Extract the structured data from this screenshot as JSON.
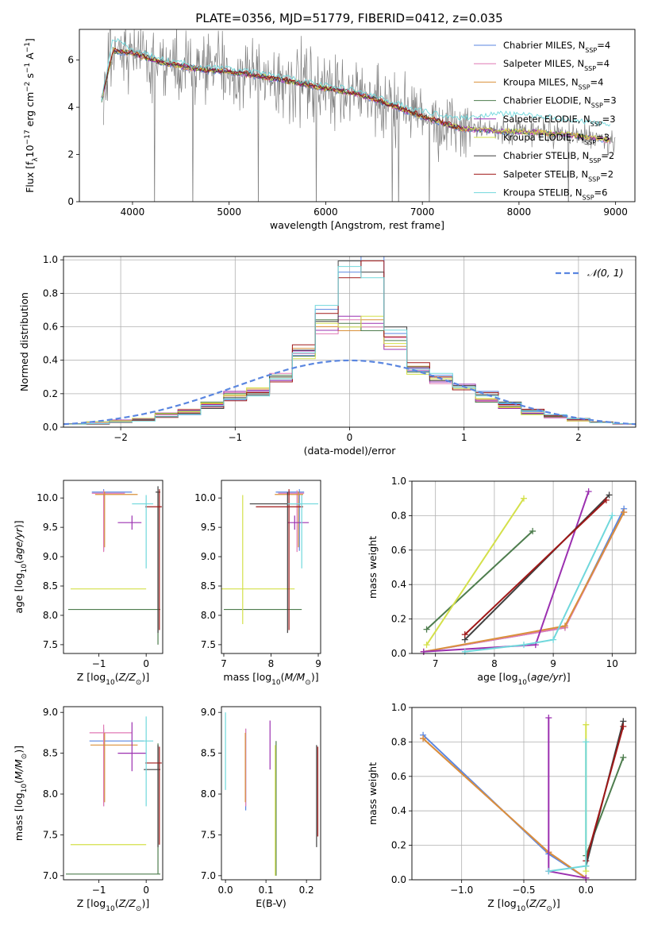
{
  "figure": {
    "title": "PLATE=0356, MJD=51779, FIBERID=0412, z=0.035"
  },
  "models": [
    {
      "label": "Chabrier MILES, N$_{SSP}$=4",
      "lab": "Chabrier MILES, N",
      "sub": "SSP",
      "n": "=4",
      "color": "#5a86e0"
    },
    {
      "label": "Salpeter MILES, N$_{SSP}$=4",
      "lab": "Salpeter MILES, N",
      "sub": "SSP",
      "n": "=4",
      "color": "#e07ab5"
    },
    {
      "label": "Kroupa MILES, N$_{SSP}$=4",
      "lab": "Kroupa MILES, N",
      "sub": "SSP",
      "n": "=4",
      "color": "#d9913a"
    },
    {
      "label": "Chabrier ELODIE, N$_{SSP}$=3",
      "lab": "Chabrier ELODIE, N",
      "sub": "SSP",
      "n": "=3",
      "color": "#4e7d4e"
    },
    {
      "label": "Salpeter ELODIE, N$_{SSP}$=3",
      "lab": "Salpeter ELODIE, N",
      "sub": "SSP",
      "n": "=3",
      "color": "#9b30b0"
    },
    {
      "label": "Kroupa ELODIE, N$_{SSP}$=3",
      "lab": "Kroupa ELODIE, N",
      "sub": "SSP",
      "n": "=3",
      "color": "#d4e04a"
    },
    {
      "label": "Chabrier STELIB, N$_{SSP}$=2",
      "lab": "Chabrier STELIB, N",
      "sub": "SSP",
      "n": "=2",
      "color": "#3f3f3f"
    },
    {
      "label": "Salpeter STELIB, N$_{SSP}$=2",
      "lab": "Salpeter STELIB, N",
      "sub": "SSP",
      "n": "=2",
      "color": "#a01818"
    },
    {
      "label": "Kroupa STELIB, N$_{SSP}$=6",
      "lab": "Kroupa STELIB, N",
      "sub": "SSP",
      "n": "=6",
      "color": "#70d8dc"
    }
  ],
  "chart_data": [
    {
      "id": "spectrum",
      "type": "line",
      "xlabel": "wavelength [Angstrom, rest frame]",
      "ylabel": "Flux [f_λ 10^-17 erg cm^-2 s^-1 A^-1]",
      "xlim": [
        3450,
        9200
      ],
      "ylim": [
        0,
        7.3
      ],
      "xticks": [
        4000,
        5000,
        6000,
        7000,
        8000,
        9000
      ],
      "yticks": [
        0,
        2,
        4,
        6
      ],
      "legend": "top-right",
      "data_color": "#808080",
      "data_x_range": [
        3700,
        9200
      ],
      "model_anchor_x": [
        3680,
        3800,
        4000,
        4300,
        4700,
        5000,
        5500,
        6000,
        6300,
        6600,
        7000,
        7400,
        7800,
        8200,
        8600,
        8950
      ],
      "model_anchor_y": [
        4.3,
        6.4,
        6.3,
        5.9,
        5.6,
        5.5,
        5.2,
        4.8,
        4.6,
        4.2,
        3.6,
        3.1,
        3.0,
        2.95,
        2.8,
        2.6
      ],
      "stelib_anchor_y": [
        4.3,
        6.9,
        6.4,
        6.0,
        5.7,
        5.6,
        5.3,
        4.9,
        4.7,
        4.3,
        3.8,
        3.5,
        3.7,
        3.6,
        3.4,
        3.2
      ]
    },
    {
      "id": "residuals",
      "type": "histogram",
      "xlabel": "(data-model)/error",
      "ylabel": "Normed distribution",
      "xlim": [
        -2.5,
        2.5
      ],
      "ylim": [
        0,
        1.02
      ],
      "xticks": [
        -2,
        -1,
        0,
        1,
        2
      ],
      "yticks": [
        0.0,
        0.2,
        0.4,
        0.6,
        0.8,
        1.0
      ],
      "legend": "top-right",
      "gauss_label": "𝒩(0, 1)",
      "gauss_color": "#5a86e0",
      "bins": [
        -2.5,
        -2.3,
        -2.1,
        -1.9,
        -1.7,
        -1.5,
        -1.3,
        -1.1,
        -0.9,
        -0.7,
        -0.5,
        -0.3,
        -0.1,
        0.1,
        0.3,
        0.5,
        0.7,
        0.9,
        1.1,
        1.3,
        1.5,
        1.7,
        1.9,
        2.1,
        2.3,
        2.5
      ],
      "hist_low": [
        0.02,
        0.03,
        0.04,
        0.05,
        0.08,
        0.1,
        0.14,
        0.2,
        0.22,
        0.3,
        0.44,
        0.6,
        0.62,
        0.62,
        0.5,
        0.34,
        0.28,
        0.24,
        0.16,
        0.12,
        0.08,
        0.06,
        0.04,
        0.03,
        0.02
      ],
      "hist_high": [
        0.02,
        0.02,
        0.03,
        0.04,
        0.06,
        0.08,
        0.12,
        0.17,
        0.2,
        0.28,
        0.46,
        0.68,
        0.96,
        0.96,
        0.56,
        0.36,
        0.3,
        0.24,
        0.2,
        0.14,
        0.1,
        0.07,
        0.05,
        0.03,
        0.02
      ]
    },
    {
      "id": "age-vs-Z",
      "type": "errorbar",
      "xlabel": "Z [log10(Z/Z⊙)]",
      "ylabel": "age  [log10(age/yr)]",
      "xlim": [
        -1.75,
        0.35
      ],
      "ylim": [
        7.35,
        10.3
      ],
      "xticks": [
        -1,
        0
      ],
      "yticks": [
        7.5,
        8.0,
        8.5,
        9.0,
        9.5,
        10.0
      ],
      "points": [
        {
          "x": -0.9,
          "y": 10.1,
          "xerr": [
            0.25,
            0.6
          ],
          "yerr": [
            1.0,
            0.05
          ],
          "model": 0
        },
        {
          "x": -0.9,
          "y": 10.08,
          "xerr": [
            0.25,
            0.45
          ],
          "yerr": [
            1.0,
            0.05
          ],
          "model": 1
        },
        {
          "x": -0.88,
          "y": 10.06,
          "xerr": [
            0.2,
            0.7
          ],
          "yerr": [
            0.9,
            0.05
          ],
          "model": 2
        },
        {
          "x": 0.25,
          "y": 8.1,
          "xerr": [
            1.9,
            0.05
          ],
          "yerr": [
            0.6,
            2.0
          ],
          "model": 3
        },
        {
          "x": -0.3,
          "y": 9.58,
          "xerr": [
            0.3,
            0.2
          ],
          "yerr": [
            0.12,
            0.12
          ],
          "model": 4
        },
        {
          "x": -1.6,
          "y": 8.45,
          "xerr": [
            0.0,
            1.6
          ],
          "yerr": [
            0.0,
            0.0
          ],
          "model": 5
        },
        {
          "x": 0.25,
          "y": 10.1,
          "xerr": [
            0.05,
            0.05
          ],
          "yerr": [
            2.4,
            0.1
          ],
          "model": 6
        },
        {
          "x": 0.28,
          "y": 9.85,
          "xerr": [
            0.3,
            0.05
          ],
          "yerr": [
            2.1,
            0.3
          ],
          "model": 7
        },
        {
          "x": 0.0,
          "y": 9.9,
          "xerr": [
            0.3,
            0.15
          ],
          "yerr": [
            1.1,
            0.15
          ],
          "model": 8
        }
      ]
    },
    {
      "id": "age-vs-mass",
      "type": "errorbar",
      "xlabel": "mass [log10(M/M⊙)]",
      "ylabel": "",
      "xlim": [
        6.95,
        9.05
      ],
      "ylim": [
        7.35,
        10.3
      ],
      "xticks": [
        7,
        8,
        9
      ],
      "yticks": [
        7.5,
        8.0,
        8.5,
        9.0,
        9.5,
        10.0
      ],
      "points": [
        {
          "x": 8.6,
          "y": 10.1,
          "xerr": [
            0.5,
            0.1
          ],
          "yerr": [
            1.0,
            0.05
          ],
          "model": 0
        },
        {
          "x": 8.55,
          "y": 10.08,
          "xerr": [
            0.4,
            0.15
          ],
          "yerr": [
            1.0,
            0.05
          ],
          "model": 1
        },
        {
          "x": 8.58,
          "y": 10.06,
          "xerr": [
            0.5,
            0.1
          ],
          "yerr": [
            0.9,
            0.05
          ],
          "model": 2
        },
        {
          "x": 7.0,
          "y": 8.1,
          "xerr": [
            0.0,
            1.65
          ],
          "yerr": [
            0.0,
            0.0
          ],
          "model": 3
        },
        {
          "x": 8.5,
          "y": 9.58,
          "xerr": [
            0.15,
            0.3
          ],
          "yerr": [
            0.12,
            0.12
          ],
          "model": 4
        },
        {
          "x": 7.4,
          "y": 8.45,
          "xerr": [
            0.45,
            1.1
          ],
          "yerr": [
            0.6,
            1.6
          ],
          "model": 5
        },
        {
          "x": 8.35,
          "y": 9.9,
          "xerr": [
            0.8,
            0.3
          ],
          "yerr": [
            2.2,
            0.2
          ],
          "model": 6
        },
        {
          "x": 8.38,
          "y": 9.85,
          "xerr": [
            0.7,
            0.3
          ],
          "yerr": [
            2.1,
            0.3
          ],
          "model": 7
        },
        {
          "x": 8.65,
          "y": 9.9,
          "xerr": [
            0.3,
            0.35
          ],
          "yerr": [
            1.1,
            0.15
          ],
          "model": 8
        }
      ]
    },
    {
      "id": "weight-vs-age",
      "type": "line",
      "xlabel": "age  [log10(age/yr)]",
      "ylabel": "mass weight",
      "xlim": [
        6.6,
        10.4
      ],
      "ylim": [
        0,
        1.0
      ],
      "xticks": [
        7,
        8,
        9,
        10
      ],
      "yticks": [
        0.0,
        0.2,
        0.4,
        0.6,
        0.8,
        1.0
      ],
      "series": [
        {
          "model": 0,
          "x": [
            6.8,
            9.2,
            10.2
          ],
          "y": [
            0.01,
            0.15,
            0.84
          ]
        },
        {
          "model": 1,
          "x": [
            6.8,
            9.2,
            10.2
          ],
          "y": [
            0.01,
            0.15,
            0.82
          ]
        },
        {
          "model": 2,
          "x": [
            6.8,
            9.2,
            10.2
          ],
          "y": [
            0.01,
            0.16,
            0.82
          ]
        },
        {
          "model": 3,
          "x": [
            6.85,
            8.65
          ],
          "y": [
            0.14,
            0.71
          ]
        },
        {
          "model": 4,
          "x": [
            6.8,
            8.7,
            9.6
          ],
          "y": [
            0.01,
            0.05,
            0.94
          ]
        },
        {
          "model": 5,
          "x": [
            6.85,
            8.5
          ],
          "y": [
            0.05,
            0.9
          ]
        },
        {
          "model": 6,
          "x": [
            7.5,
            9.95
          ],
          "y": [
            0.08,
            0.92
          ]
        },
        {
          "model": 7,
          "x": [
            7.5,
            9.9
          ],
          "y": [
            0.11,
            0.89
          ]
        },
        {
          "model": 8,
          "x": [
            7.5,
            8.5,
            9.0,
            10.0
          ],
          "y": [
            0.01,
            0.05,
            0.08,
            0.8
          ]
        }
      ]
    },
    {
      "id": "mass-vs-Z",
      "type": "errorbar",
      "xlabel": "Z [log10(Z/Z⊙)]",
      "ylabel": "mass [log10(M/M⊙)]",
      "xlim": [
        -1.75,
        0.35
      ],
      "ylim": [
        6.95,
        9.07
      ],
      "xticks": [
        -1,
        0
      ],
      "yticks": [
        7.0,
        7.5,
        8.0,
        8.5,
        9.0
      ],
      "points": [
        {
          "x": -0.9,
          "y": 8.65,
          "xerr": [
            0.3,
            0.85
          ],
          "yerr": [
            0.8,
            0.15
          ],
          "model": 0
        },
        {
          "x": -0.9,
          "y": 8.75,
          "xerr": [
            0.3,
            0.6
          ],
          "yerr": [
            0.9,
            0.1
          ],
          "model": 1
        },
        {
          "x": -0.88,
          "y": 8.6,
          "xerr": [
            0.3,
            0.7
          ],
          "yerr": [
            0.7,
            0.15
          ],
          "model": 2
        },
        {
          "x": 0.25,
          "y": 7.02,
          "xerr": [
            1.95,
            0.05
          ],
          "yerr": [
            0.0,
            1.6
          ],
          "model": 3
        },
        {
          "x": -0.3,
          "y": 8.5,
          "xerr": [
            0.3,
            0.3
          ],
          "yerr": [
            0.22,
            0.38
          ],
          "model": 4
        },
        {
          "x": -1.6,
          "y": 7.38,
          "xerr": [
            0.0,
            1.6
          ],
          "yerr": [
            0.0,
            0.0
          ],
          "model": 5
        },
        {
          "x": 0.25,
          "y": 8.3,
          "xerr": [
            0.3,
            0.05
          ],
          "yerr": [
            0.95,
            0.3
          ],
          "model": 6
        },
        {
          "x": 0.28,
          "y": 8.38,
          "xerr": [
            0.3,
            0.05
          ],
          "yerr": [
            1.0,
            0.2
          ],
          "model": 7
        },
        {
          "x": 0.0,
          "y": 8.65,
          "xerr": [
            0.3,
            0.15
          ],
          "yerr": [
            0.8,
            0.3
          ],
          "model": 8
        }
      ]
    },
    {
      "id": "mass-vs-EBV",
      "type": "errorbar",
      "xlabel": "E(B-V)",
      "ylabel": "",
      "xlim": [
        -0.01,
        0.235
      ],
      "ylim": [
        6.95,
        9.07
      ],
      "xticks": [
        0.0,
        0.1,
        0.2
      ],
      "yticks": [
        7.0,
        7.5,
        8.0,
        8.5,
        9.0
      ],
      "points": [
        {
          "x": 0.05,
          "y": 8.65,
          "xerr": [
            0.0,
            0.0
          ],
          "yerr": [
            0.85,
            0.15
          ],
          "model": 0
        },
        {
          "x": 0.05,
          "y": 8.75,
          "xerr": [
            0.0,
            0.0
          ],
          "yerr": [
            0.9,
            0.05
          ],
          "model": 1
        },
        {
          "x": 0.049,
          "y": 8.6,
          "xerr": [
            0.0,
            0.0
          ],
          "yerr": [
            0.7,
            0.15
          ],
          "model": 2
        },
        {
          "x": 0.125,
          "y": 8.3,
          "xerr": [
            0.0,
            0.0
          ],
          "yerr": [
            1.3,
            0.35
          ],
          "model": 3
        },
        {
          "x": 0.11,
          "y": 8.5,
          "xerr": [
            0.0,
            0.0
          ],
          "yerr": [
            0.2,
            0.4
          ],
          "model": 4
        },
        {
          "x": 0.123,
          "y": 8.3,
          "xerr": [
            0.0,
            0.0
          ],
          "yerr": [
            1.3,
            0.3
          ],
          "model": 5
        },
        {
          "x": 0.225,
          "y": 8.3,
          "xerr": [
            0.0,
            0.0
          ],
          "yerr": [
            0.95,
            0.3
          ],
          "model": 6
        },
        {
          "x": 0.228,
          "y": 8.38,
          "xerr": [
            0.0,
            0.0
          ],
          "yerr": [
            0.9,
            0.2
          ],
          "model": 7
        },
        {
          "x": 0.0,
          "y": 8.65,
          "xerr": [
            0.0,
            0.0
          ],
          "yerr": [
            0.6,
            0.35
          ],
          "model": 8
        }
      ]
    },
    {
      "id": "weight-vs-Z",
      "type": "line",
      "xlabel": "Z [log10(Z/Z⊙)]",
      "ylabel": "mass weight",
      "xlim": [
        -1.4,
        0.4
      ],
      "ylim": [
        0,
        1.0
      ],
      "xticks": [
        -1.0,
        -0.5,
        0.0
      ],
      "yticks": [
        0.0,
        0.2,
        0.4,
        0.6,
        0.8,
        1.0
      ],
      "series": [
        {
          "model": 0,
          "x": [
            -1.31,
            -0.3,
            0.0
          ],
          "y": [
            0.84,
            0.15,
            0.01
          ]
        },
        {
          "model": 1,
          "x": [
            -1.31,
            -0.3,
            0.0
          ],
          "y": [
            0.82,
            0.16,
            0.01
          ]
        },
        {
          "model": 2,
          "x": [
            -1.31,
            -0.3,
            0.0
          ],
          "y": [
            0.82,
            0.16,
            0.01
          ]
        },
        {
          "model": 3,
          "x": [
            0.0,
            0.3
          ],
          "y": [
            0.14,
            0.71
          ]
        },
        {
          "model": 4,
          "x": [
            -0.3,
            -0.3,
            0.0
          ],
          "y": [
            0.94,
            0.05,
            0.01
          ]
        },
        {
          "model": 5,
          "x": [
            0.0,
            0.0
          ],
          "y": [
            0.05,
            0.9
          ]
        },
        {
          "model": 6,
          "x": [
            0.0,
            0.3
          ],
          "y": [
            0.08,
            0.92
          ]
        },
        {
          "model": 7,
          "x": [
            0.0,
            0.3
          ],
          "y": [
            0.11,
            0.89
          ]
        },
        {
          "model": 8,
          "x": [
            -0.3,
            0.0,
            0.0
          ],
          "y": [
            0.05,
            0.08,
            0.8
          ]
        }
      ]
    }
  ]
}
